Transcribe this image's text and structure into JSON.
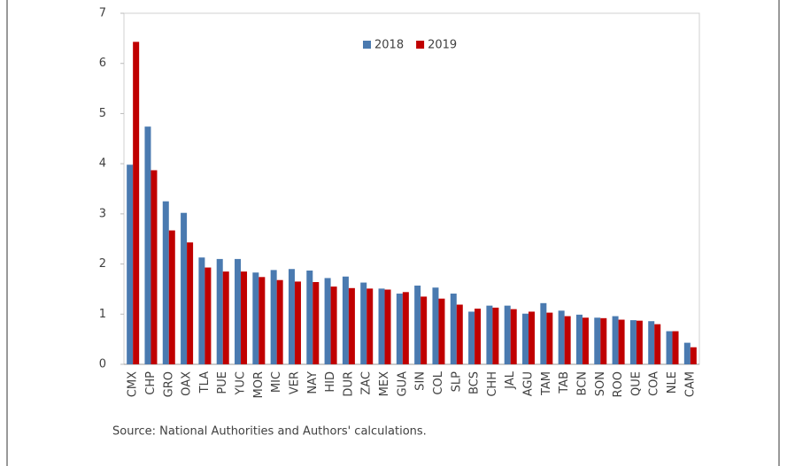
{
  "chart_data": {
    "type": "bar",
    "categories": [
      "CMX",
      "CHP",
      "GRO",
      "OAX",
      "TLA",
      "PUE",
      "YUC",
      "MOR",
      "MIC",
      "VER",
      "NAY",
      "HID",
      "DUR",
      "ZAC",
      "MEX",
      "GUA",
      "SIN",
      "COL",
      "SLP",
      "BCS",
      "CHH",
      "JAL",
      "AGU",
      "TAM",
      "TAB",
      "BCN",
      "SON",
      "ROO",
      "QUE",
      "COA",
      "NLE",
      "CAM"
    ],
    "series": [
      {
        "name": "2018",
        "color": "#4a7ab0",
        "values": [
          3.98,
          4.74,
          3.25,
          3.02,
          2.13,
          2.1,
          2.1,
          1.83,
          1.88,
          1.9,
          1.87,
          1.72,
          1.75,
          1.63,
          1.51,
          1.41,
          1.57,
          1.53,
          1.41,
          1.05,
          1.17,
          1.17,
          1.01,
          1.22,
          1.07,
          0.99,
          0.93,
          0.96,
          0.88,
          0.86,
          0.66,
          0.43
        ]
      },
      {
        "name": "2019",
        "color": "#c00000",
        "values": [
          6.43,
          3.87,
          2.67,
          2.43,
          1.93,
          1.85,
          1.85,
          1.74,
          1.68,
          1.65,
          1.64,
          1.55,
          1.52,
          1.51,
          1.49,
          1.44,
          1.35,
          1.31,
          1.19,
          1.11,
          1.13,
          1.1,
          1.05,
          1.03,
          0.96,
          0.93,
          0.92,
          0.89,
          0.87,
          0.8,
          0.66,
          0.34
        ]
      }
    ],
    "ylim": [
      0,
      7
    ],
    "yticks": [
      0,
      1,
      2,
      3,
      4,
      5,
      6,
      7
    ],
    "grid": false,
    "legend": "top",
    "note": "Source: National Authorities and Authors' calculations."
  }
}
